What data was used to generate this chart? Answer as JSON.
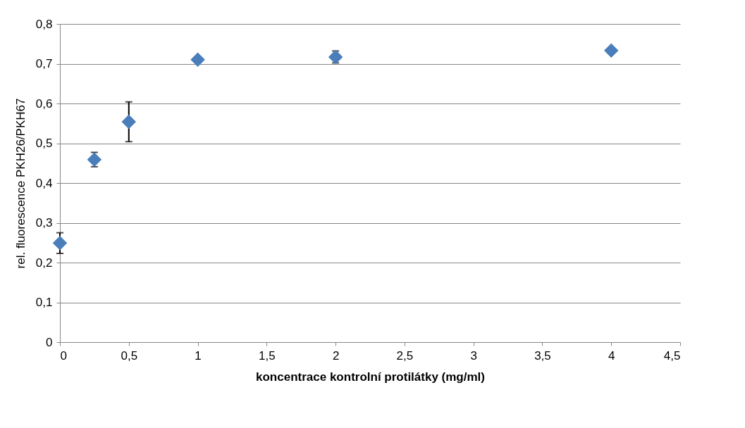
{
  "chart_data": {
    "type": "scatter",
    "xlabel": "koncentrace kontrolní protilátky (mg/ml)",
    "ylabel": "rel. fluorescence PKH26/PKH67",
    "x": [
      0,
      0.25,
      0.5,
      1,
      2,
      4
    ],
    "series": [
      {
        "color": "#4a7ebb",
        "values": [
          0.249,
          0.459,
          0.554,
          0.71,
          0.717,
          0.733
        ],
        "errors": [
          0.026,
          0.018,
          0.05,
          null,
          0.015,
          null
        ]
      }
    ],
    "xlim": [
      0,
      4.5
    ],
    "xticks": [
      {
        "value": 0,
        "label": "0"
      },
      {
        "value": 0.5,
        "label": "0,5"
      },
      {
        "value": 1,
        "label": "1"
      },
      {
        "value": 1.5,
        "label": "1,5"
      },
      {
        "value": 2,
        "label": "2"
      },
      {
        "value": 2.5,
        "label": "2,5"
      },
      {
        "value": 3,
        "label": "3"
      },
      {
        "value": 3.5,
        "label": "3,5"
      },
      {
        "value": 4,
        "label": "4"
      },
      {
        "value": 4.5,
        "label": "4,5"
      }
    ],
    "ylim": [
      0,
      0.8
    ],
    "yticks": [
      {
        "value": 0,
        "label": "0"
      },
      {
        "value": 0.1,
        "label": "0,1"
      },
      {
        "value": 0.2,
        "label": "0,2"
      },
      {
        "value": 0.3,
        "label": "0,3"
      },
      {
        "value": 0.4,
        "label": "0,4"
      },
      {
        "value": 0.5,
        "label": "0,5"
      },
      {
        "value": 0.6,
        "label": "0,6"
      },
      {
        "value": 0.7,
        "label": "0,7"
      },
      {
        "value": 0.8,
        "label": "0,8"
      }
    ],
    "grid": "y",
    "marker": "diamond"
  }
}
